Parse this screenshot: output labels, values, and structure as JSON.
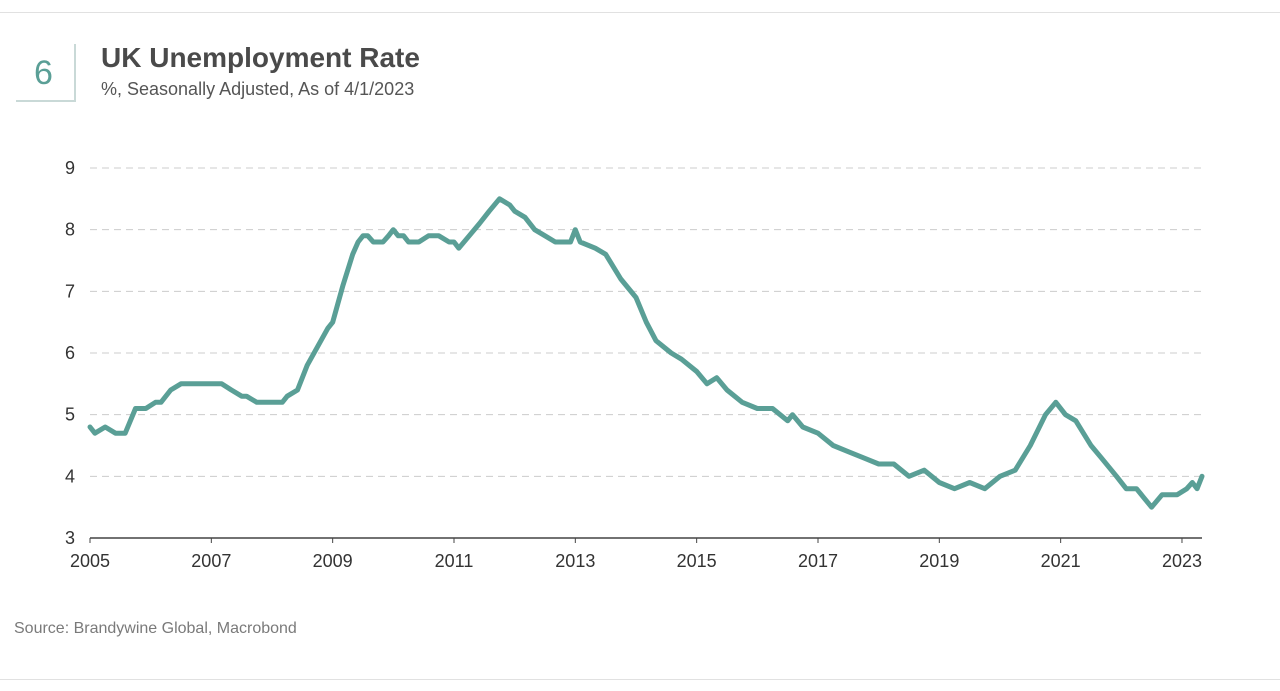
{
  "figure_number": "6",
  "colors": {
    "line": "#5a9f96",
    "grid": "#cccccc",
    "accent": "#5a9f96"
  },
  "source": "Source: Brandywine Global, Macrobond",
  "chart_data": {
    "type": "line",
    "title": "UK Unemployment Rate",
    "subtitle": "%, Seasonally Adjusted, As of 4/1/2023",
    "xlabel": "",
    "ylabel": "",
    "xlim": [
      2005.0,
      2023.33
    ],
    "ylim": [
      3,
      9
    ],
    "grid": true,
    "legend": "none",
    "x_ticks": [
      2005,
      2007,
      2009,
      2011,
      2013,
      2015,
      2017,
      2019,
      2021,
      2023
    ],
    "y_ticks": [
      3,
      4,
      5,
      6,
      7,
      8,
      9
    ],
    "series": [
      {
        "x": [
          2005.0,
          2005.08,
          2005.25,
          2005.42,
          2005.58,
          2005.75,
          2005.92,
          2006.08,
          2006.17,
          2006.33,
          2006.5,
          2006.67,
          2006.92,
          2007.0,
          2007.17,
          2007.33,
          2007.5,
          2007.58,
          2007.75,
          2008.0,
          2008.17,
          2008.25,
          2008.42,
          2008.58,
          2008.75,
          2008.92,
          2009.0,
          2009.17,
          2009.33,
          2009.42,
          2009.5,
          2009.58,
          2009.67,
          2009.75,
          2009.83,
          2009.92,
          2010.0,
          2010.08,
          2010.17,
          2010.25,
          2010.42,
          2010.58,
          2010.75,
          2010.92,
          2011.0,
          2011.08,
          2011.25,
          2011.42,
          2011.58,
          2011.75,
          2011.92,
          2012.0,
          2012.17,
          2012.33,
          2012.5,
          2012.67,
          2012.92,
          2013.0,
          2013.08,
          2013.33,
          2013.5,
          2013.75,
          2014.0,
          2014.17,
          2014.33,
          2014.58,
          2014.75,
          2015.0,
          2015.17,
          2015.33,
          2015.5,
          2015.75,
          2016.0,
          2016.25,
          2016.5,
          2016.58,
          2016.75,
          2017.0,
          2017.25,
          2017.5,
          2017.75,
          2018.0,
          2018.25,
          2018.5,
          2018.75,
          2019.0,
          2019.25,
          2019.5,
          2019.75,
          2020.0,
          2020.25,
          2020.5,
          2020.75,
          2020.92,
          2021.08,
          2021.25,
          2021.5,
          2021.67,
          2021.92,
          2022.08,
          2022.25,
          2022.5,
          2022.67,
          2022.92,
          2023.08,
          2023.17,
          2023.25,
          2023.33
        ],
        "y": [
          4.8,
          4.7,
          4.8,
          4.7,
          4.7,
          5.1,
          5.1,
          5.2,
          5.2,
          5.4,
          5.5,
          5.5,
          5.5,
          5.5,
          5.5,
          5.4,
          5.3,
          5.3,
          5.2,
          5.2,
          5.2,
          5.3,
          5.4,
          5.8,
          6.1,
          6.4,
          6.5,
          7.1,
          7.6,
          7.8,
          7.9,
          7.9,
          7.8,
          7.8,
          7.8,
          7.9,
          8.0,
          7.9,
          7.9,
          7.8,
          7.8,
          7.9,
          7.9,
          7.8,
          7.8,
          7.7,
          7.9,
          8.1,
          8.3,
          8.5,
          8.4,
          8.3,
          8.2,
          8.0,
          7.9,
          7.8,
          7.8,
          8.0,
          7.8,
          7.7,
          7.6,
          7.2,
          6.9,
          6.5,
          6.2,
          6.0,
          5.9,
          5.7,
          5.5,
          5.6,
          5.4,
          5.2,
          5.1,
          5.1,
          4.9,
          5.0,
          4.8,
          4.7,
          4.5,
          4.4,
          4.3,
          4.2,
          4.2,
          4.0,
          4.1,
          3.9,
          3.8,
          3.9,
          3.8,
          4.0,
          4.1,
          4.5,
          5.0,
          5.2,
          5.0,
          4.9,
          4.5,
          4.3,
          4.0,
          3.8,
          3.8,
          3.5,
          3.7,
          3.7,
          3.8,
          3.9,
          3.8,
          4.0
        ]
      }
    ]
  }
}
